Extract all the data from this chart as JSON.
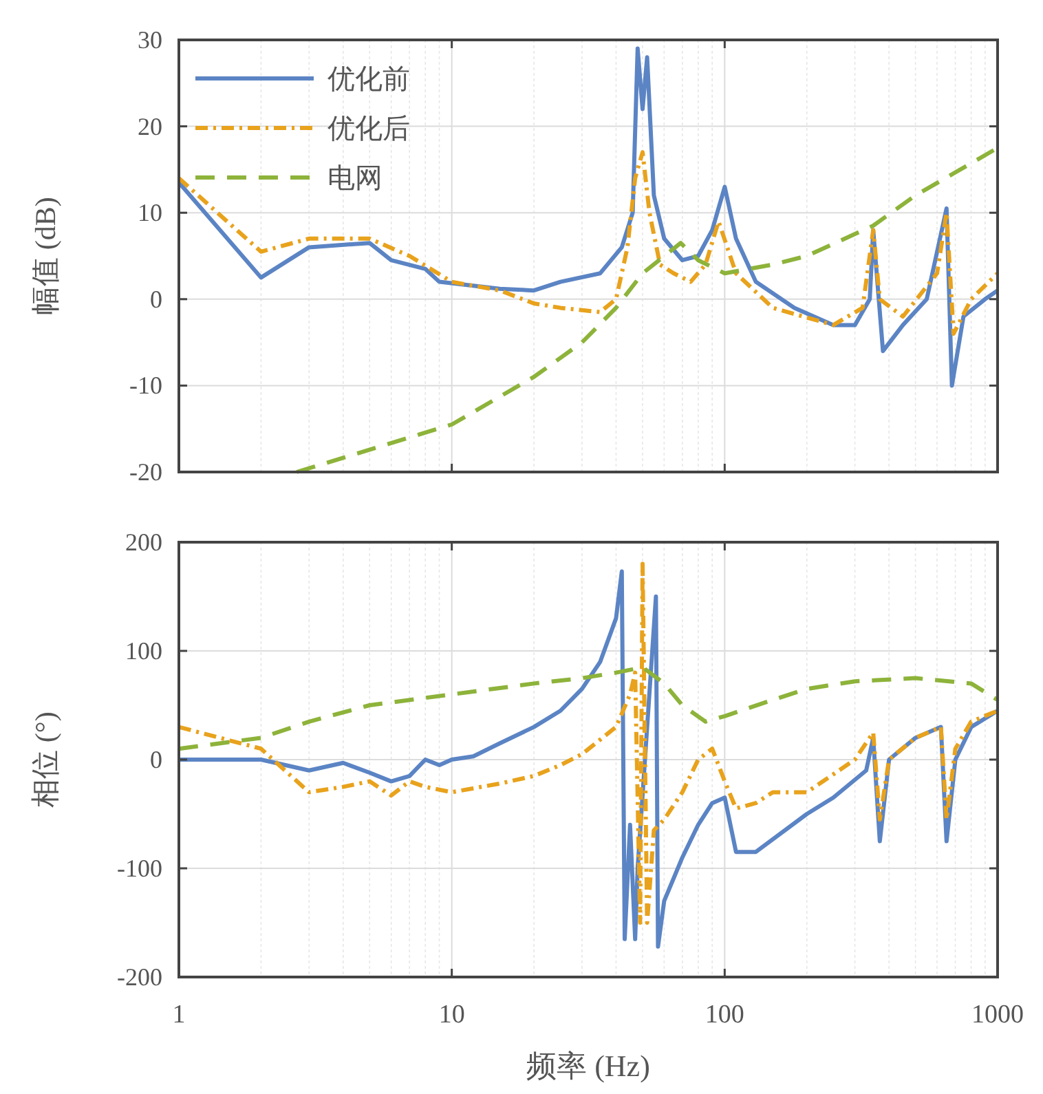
{
  "chart_data": [
    {
      "type": "line",
      "ylabel": "幅值 (dB)",
      "log": "x",
      "xlim": [
        1,
        1000
      ],
      "xticks": [
        1,
        10,
        100,
        1000
      ],
      "ylim": [
        -20,
        30
      ],
      "yticks": [
        -20,
        -10,
        0,
        10,
        20,
        30
      ],
      "grid": true,
      "legend": "top left",
      "tick_labels": "y",
      "series": [
        {
          "name": "优化前",
          "color": "#5b84c4",
          "line_style": "solid",
          "x": [
            1,
            2,
            3,
            5,
            6,
            8,
            9,
            15,
            20,
            25,
            35,
            42,
            46,
            48,
            50,
            52,
            55,
            60,
            70,
            80,
            90,
            100,
            110,
            130,
            180,
            250,
            300,
            340,
            350,
            380,
            450,
            550,
            650,
            680,
            750,
            900,
            1000
          ],
          "values": [
            13.5,
            2.5,
            6,
            6.5,
            4.5,
            3.5,
            2,
            1.2,
            1,
            2,
            3,
            6,
            10,
            29,
            22,
            28,
            12,
            7,
            4.5,
            5,
            8,
            13,
            7,
            2,
            -1,
            -3,
            -3,
            0,
            8,
            -6,
            -3,
            0,
            10.5,
            -10,
            -2,
            0,
            1
          ]
        },
        {
          "name": "优化后",
          "color": "#e8a21c",
          "line_style": "dashdot",
          "x": [
            1,
            2,
            3,
            5,
            7,
            10,
            15,
            20,
            25,
            35,
            40,
            44,
            47,
            50,
            53,
            58,
            65,
            75,
            85,
            95,
            110,
            150,
            250,
            320,
            350,
            370,
            450,
            600,
            650,
            690,
            800,
            1000
          ],
          "values": [
            14,
            5.5,
            7,
            7,
            5,
            2,
            1,
            -0.5,
            -1,
            -1.5,
            0,
            6,
            14,
            17,
            10,
            4,
            3,
            2,
            4,
            9,
            3,
            -1,
            -3,
            -1,
            8,
            0,
            -2,
            3,
            10,
            -4,
            0,
            3
          ]
        },
        {
          "name": "电网",
          "color": "#8db33a",
          "line_style": "dashed",
          "x": [
            2.7,
            10,
            20,
            30,
            40,
            50,
            69,
            80,
            100,
            150,
            200,
            350,
            500,
            1000
          ],
          "values": [
            -20,
            -14.5,
            -9,
            -5,
            -1,
            3,
            6.5,
            4.5,
            3,
            4,
            5,
            8.5,
            12,
            17.5
          ]
        }
      ]
    },
    {
      "type": "line",
      "xlabel": "频率 (Hz)",
      "ylabel": "相位 (°)",
      "log": "x",
      "xlim": [
        1,
        1000
      ],
      "xticks": [
        1,
        10,
        100,
        1000
      ],
      "ylim": [
        -200,
        200
      ],
      "yticks": [
        -200,
        -100,
        0,
        100,
        200
      ],
      "grid": true,
      "series": [
        {
          "color": "#5b84c4",
          "line_style": "solid",
          "x": [
            1,
            2,
            3,
            4,
            5,
            6,
            7,
            8,
            9,
            10,
            12,
            15,
            20,
            25,
            30,
            35,
            40,
            42,
            43,
            45,
            47,
            48,
            56,
            57,
            60,
            70,
            80,
            90,
            100,
            110,
            130,
            200,
            250,
            330,
            350,
            370,
            400,
            500,
            620,
            650,
            700,
            800,
            1000
          ],
          "values": [
            0,
            0,
            -10,
            -3,
            -12,
            -20,
            -15,
            0,
            -5,
            0,
            3,
            15,
            30,
            45,
            65,
            90,
            130,
            173,
            -165,
            -60,
            -165,
            -100,
            150,
            -172,
            -130,
            -90,
            -60,
            -40,
            -35,
            -85,
            -85,
            -50,
            -35,
            -10,
            20,
            -75,
            0,
            20,
            30,
            -75,
            0,
            30,
            45
          ]
        },
        {
          "color": "#e8a21c",
          "line_style": "dashdot",
          "x": [
            1,
            2,
            3,
            4,
            5,
            6,
            7,
            8,
            10,
            15,
            20,
            25,
            30,
            40,
            45,
            47,
            49,
            50,
            52,
            55,
            60,
            70,
            80,
            90,
            100,
            110,
            130,
            150,
            200,
            300,
            350,
            370,
            400,
            500,
            620,
            650,
            700,
            800,
            1000
          ],
          "values": [
            30,
            10,
            -30,
            -25,
            -20,
            -33,
            -20,
            -25,
            -30,
            -22,
            -15,
            -5,
            5,
            30,
            60,
            80,
            -150,
            180,
            -150,
            -65,
            -55,
            -30,
            0,
            10,
            -20,
            -45,
            -40,
            -30,
            -30,
            0,
            25,
            -55,
            0,
            20,
            30,
            -55,
            10,
            35,
            45
          ]
        },
        {
          "color": "#8db33a",
          "line_style": "dashed",
          "x": [
            1,
            2,
            3,
            5,
            10,
            20,
            30,
            40,
            50,
            60,
            70,
            85,
            100,
            150,
            200,
            300,
            500,
            800,
            1000
          ],
          "values": [
            10,
            20,
            35,
            50,
            60,
            70,
            75,
            80,
            85,
            70,
            50,
            35,
            40,
            55,
            65,
            72,
            75,
            70,
            55
          ]
        }
      ]
    }
  ]
}
